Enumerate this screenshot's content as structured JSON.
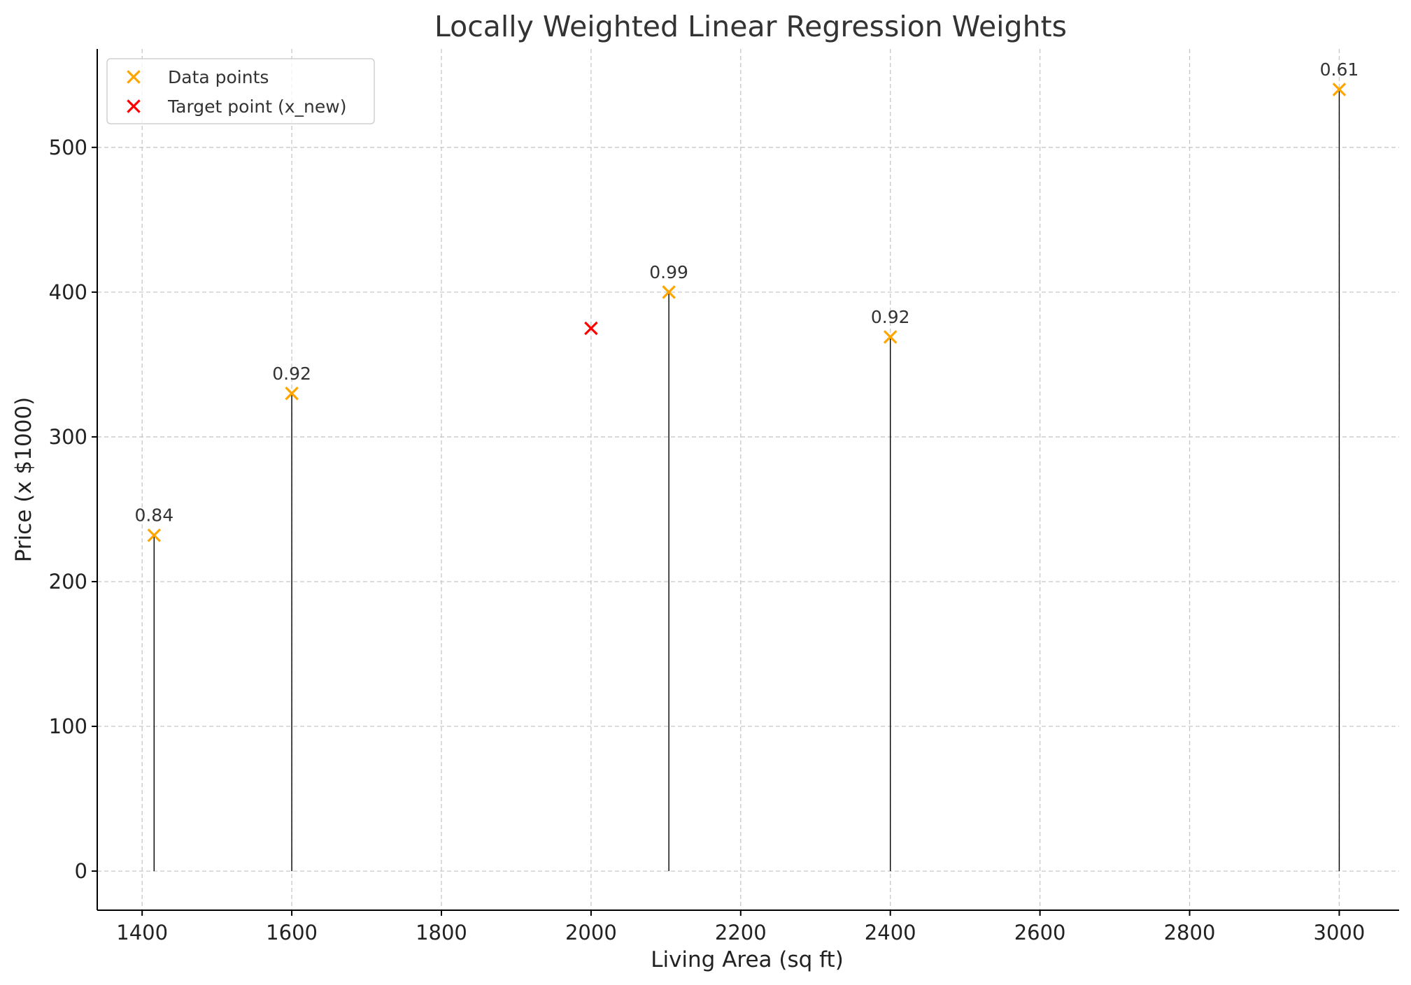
{
  "chart_data": {
    "type": "scatter",
    "title": "Locally Weighted Linear Regression Weights",
    "xlabel": "Living Area (sq ft)",
    "ylabel": "Price (x $1000)",
    "xlim": [
      1340,
      3080
    ],
    "ylim": [
      -27,
      568
    ],
    "xticks": [
      1400,
      1600,
      1800,
      2000,
      2200,
      2400,
      2600,
      2800,
      3000
    ],
    "yticks": [
      0,
      100,
      200,
      300,
      400,
      500
    ],
    "grid": true,
    "legend_position": "top-left",
    "series": [
      {
        "name": "Data points",
        "color": "#FFA500",
        "marker": "x",
        "stems": true,
        "points": [
          {
            "x": 1416,
            "y": 232,
            "label": "0.84"
          },
          {
            "x": 1600,
            "y": 330,
            "label": "0.92"
          },
          {
            "x": 2104,
            "y": 400,
            "label": "0.99"
          },
          {
            "x": 2400,
            "y": 369,
            "label": "0.92"
          },
          {
            "x": 3000,
            "y": 540,
            "label": "0.61"
          }
        ]
      },
      {
        "name": "Target point (x_new)",
        "color": "#FF0000",
        "marker": "x",
        "stems": false,
        "points": [
          {
            "x": 2000,
            "y": 375
          }
        ]
      }
    ]
  }
}
